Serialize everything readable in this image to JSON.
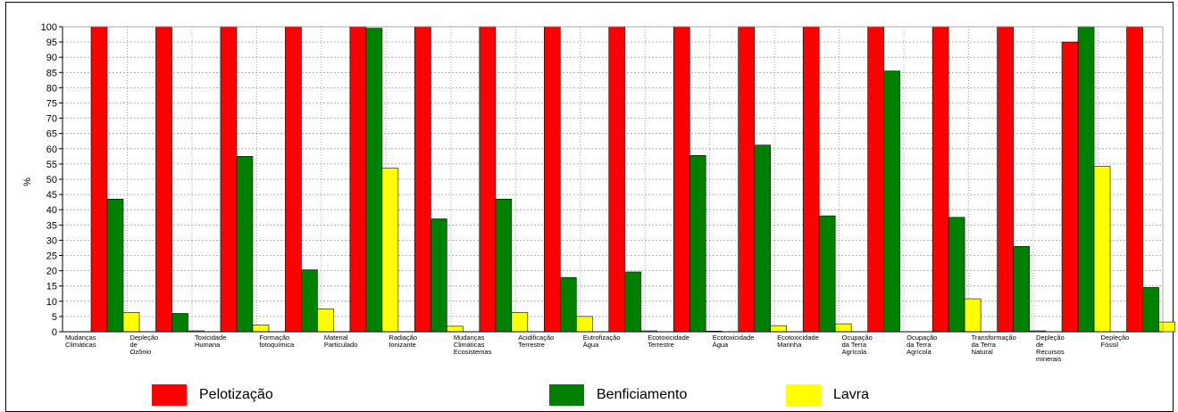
{
  "chart_data": {
    "type": "bar",
    "ylabel": "%",
    "ylim": [
      0,
      100
    ],
    "yticks": [
      0,
      5,
      10,
      15,
      20,
      25,
      30,
      35,
      40,
      45,
      50,
      55,
      60,
      65,
      70,
      75,
      80,
      85,
      90,
      95,
      100
    ],
    "grid": true,
    "legend_position": "bottom",
    "categories": [
      [
        "Mudanças",
        "Climáticas"
      ],
      [
        "Depleção",
        "de",
        "Ozônio"
      ],
      [
        "Toxicidade",
        "Humana"
      ],
      [
        "Formação",
        "fotoquímica"
      ],
      [
        "Material",
        "Particulado"
      ],
      [
        "Radiação",
        "Ionizante"
      ],
      [
        "Mudanças",
        "Climáticas",
        "Ecosistemas"
      ],
      [
        "Acidificação",
        "Terrestre"
      ],
      [
        "Eutrofização",
        "Água"
      ],
      [
        "Ecotoxicidade",
        "Terrestre"
      ],
      [
        "Ecotoxicidade",
        "Água"
      ],
      [
        "Ecotoxicidade",
        "Marinha"
      ],
      [
        "Ocupação",
        "da Terra",
        "Agrícola"
      ],
      [
        "Ocupação",
        "da Terra",
        "Agrícola"
      ],
      [
        "Transformação",
        "da Terra",
        "Natural"
      ],
      [
        "Depleção",
        "de",
        "Recursos",
        "minerais"
      ],
      [
        "Depleção",
        "Fóssil"
      ]
    ],
    "series": [
      {
        "name": "Pelotização",
        "color": "#ff0000",
        "values": [
          100,
          100,
          100,
          100,
          100,
          100,
          100,
          100,
          100,
          100,
          100,
          100,
          100,
          100,
          100,
          95,
          100
        ]
      },
      {
        "name": "Benficiamento",
        "color": "#008000",
        "values": [
          43.5,
          6,
          57.5,
          20.3,
          99.5,
          37,
          43.5,
          17.8,
          19.6,
          57.8,
          61.2,
          38,
          85.5,
          37.5,
          28,
          100,
          14.5
        ]
      },
      {
        "name": "Lavra",
        "color": "#ffff00",
        "values": [
          6.3,
          0.3,
          2.2,
          7.5,
          53.6,
          1.8,
          6.3,
          5,
          0.3,
          0.2,
          2,
          2.6,
          0,
          10.8,
          0.3,
          54.2,
          3.2
        ]
      }
    ]
  }
}
